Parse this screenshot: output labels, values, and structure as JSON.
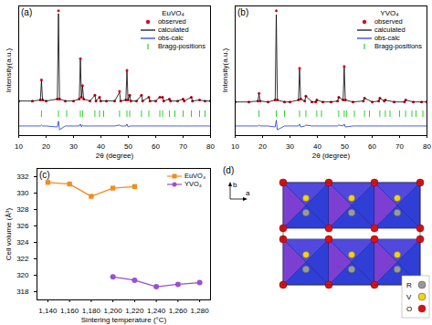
{
  "chart_data": [
    {
      "type": "line",
      "title": "(a)",
      "legend_title": "EuVO₄",
      "legend": "top-right",
      "tick_labels": "x",
      "xlabel": "2θ (degree)",
      "ylabel": "Intensity(a.u.)",
      "xlim": [
        10,
        80
      ],
      "xticks": [
        10,
        20,
        30,
        40,
        50,
        60,
        70,
        80
      ],
      "ylim": [
        -30,
        105
      ],
      "x": [
        10,
        15,
        17.9,
        18.3,
        18.7,
        20,
        24.1,
        24.5,
        24.9,
        27,
        30,
        32.1,
        32.5,
        32.9,
        33.3,
        33.7,
        36,
        37.8,
        38.2,
        39.5,
        39.9,
        42,
        45,
        46.8,
        47.2,
        49.1,
        49.5,
        49.9,
        50.5,
        50.9,
        53,
        54.8,
        55.2,
        57.5,
        57.9,
        60,
        61.5,
        62.5,
        62.9,
        65,
        65.4,
        68,
        70,
        70.4,
        73,
        73.4,
        76,
        78,
        80
      ],
      "series": [
        {
          "name": "observed",
          "type": "scatter",
          "marker": "circle",
          "color": "#e4001b",
          "values": [
            6,
            6,
            7,
            28,
            7,
            6,
            8,
            100,
            8,
            6,
            6,
            8,
            50,
            10,
            22,
            8,
            6,
            12,
            6,
            10,
            6,
            6,
            6,
            16,
            6,
            7,
            38,
            7,
            12,
            6,
            6,
            12,
            6,
            10,
            6,
            6,
            10,
            10,
            6,
            8,
            6,
            6,
            8,
            6,
            10,
            6,
            7,
            6,
            6
          ]
        },
        {
          "name": "calculated",
          "type": "line",
          "color": "#000000",
          "values": [
            6,
            6,
            7,
            27,
            7,
            6,
            8,
            97,
            8,
            6,
            6,
            8,
            49,
            10,
            21,
            8,
            6,
            12,
            6,
            10,
            6,
            6,
            6,
            15,
            6,
            7,
            37,
            7,
            12,
            6,
            6,
            12,
            6,
            10,
            6,
            6,
            10,
            10,
            6,
            8,
            6,
            6,
            8,
            6,
            10,
            6,
            7,
            6,
            6
          ]
        },
        {
          "name": "obs-calc",
          "type": "line",
          "color": "#1f35c8",
          "values": [
            -20,
            -20,
            -20,
            -19,
            -20,
            -20,
            -21,
            -15,
            -24,
            -20,
            -20,
            -20,
            -18,
            -21,
            -19,
            -20,
            -20,
            -20,
            -20,
            -20,
            -20,
            -20,
            -20,
            -19,
            -20,
            -20,
            -18,
            -21,
            -20,
            -20,
            -20,
            -20,
            -20,
            -20,
            -20,
            -20,
            -20,
            -20,
            -20,
            -20,
            -20,
            -20,
            -20,
            -20,
            -20,
            -20,
            -20,
            -20,
            -20
          ]
        },
        {
          "name": "Bragg-positions",
          "type": "ticks",
          "color": "#2bd02b",
          "x": [
            18.3,
            24.5,
            27.5,
            32.5,
            33.3,
            37.8,
            39.5,
            41,
            46.8,
            49.5,
            50.5,
            54.8,
            57.5,
            61.5,
            62.5,
            65,
            67,
            70,
            73,
            76,
            78
          ]
        }
      ]
    },
    {
      "type": "line",
      "title": "(b)",
      "legend_title": "YVO₄",
      "legend": "top-right",
      "tick_labels": "x",
      "xlabel": "2θ (degree)",
      "ylabel": "Intensity(a.u.)",
      "xlim": [
        10,
        80
      ],
      "xticks": [
        10,
        20,
        30,
        40,
        50,
        60,
        70,
        80
      ],
      "ylim": [
        -30,
        105
      ],
      "x": [
        10,
        15,
        18.3,
        18.7,
        19.1,
        22,
        24.6,
        25.0,
        25.4,
        28,
        30,
        33.1,
        33.5,
        33.9,
        35.4,
        35.8,
        38,
        39.4,
        39.8,
        42,
        45,
        47.4,
        47.8,
        49.4,
        49.8,
        50.2,
        53,
        56.8,
        57.2,
        60,
        62.4,
        62.8,
        64.4,
        64.8,
        68,
        71.8,
        72.2,
        75,
        78,
        80
      ],
      "series": [
        {
          "name": "observed",
          "type": "scatter",
          "marker": "circle",
          "color": "#e4001b",
          "values": [
            5,
            5,
            6,
            14,
            6,
            5,
            7,
            100,
            7,
            5,
            5,
            7,
            40,
            8,
            6,
            11,
            5,
            5,
            7,
            5,
            5,
            6,
            10,
            7,
            42,
            7,
            5,
            6,
            9,
            5,
            6,
            9,
            6,
            7,
            5,
            5,
            7,
            5,
            5,
            5
          ]
        },
        {
          "name": "calculated",
          "type": "line",
          "color": "#000000",
          "values": [
            5,
            5,
            6,
            13,
            6,
            5,
            7,
            96,
            7,
            5,
            5,
            7,
            39,
            8,
            6,
            11,
            5,
            5,
            7,
            5,
            5,
            6,
            10,
            7,
            41,
            7,
            5,
            6,
            9,
            5,
            6,
            9,
            6,
            7,
            5,
            5,
            7,
            5,
            5,
            5
          ]
        },
        {
          "name": "obs-calc",
          "type": "line",
          "color": "#1f35c8",
          "values": [
            -20,
            -20,
            -20,
            -19,
            -20,
            -20,
            -21,
            -14,
            -24,
            -20,
            -20,
            -20,
            -18,
            -21,
            -20,
            -19,
            -20,
            -20,
            -20,
            -20,
            -20,
            -20,
            -19,
            -20,
            -18,
            -21,
            -20,
            -20,
            -20,
            -20,
            -20,
            -20,
            -20,
            -20,
            -20,
            -20,
            -20,
            -20,
            -20,
            -20
          ]
        },
        {
          "name": "Bragg-positions",
          "type": "ticks",
          "color": "#2bd02b",
          "x": [
            18.7,
            25.0,
            28.0,
            33.5,
            35.8,
            39.8,
            41.5,
            47.8,
            49.8,
            50.6,
            53.5,
            57.2,
            59,
            62.8,
            64.8,
            66.5,
            70,
            72.2,
            74.5,
            76,
            78.5
          ]
        }
      ]
    },
    {
      "type": "line",
      "title": "(c)",
      "legend": "top-right",
      "xlabel": "Sintering temperature (°C)",
      "ylabel": "Cell volume (Å³)",
      "xlim": [
        1130,
        1290
      ],
      "xticks": [
        1140,
        1160,
        1180,
        1200,
        1220,
        1240,
        1260,
        1280
      ],
      "ylim": [
        317,
        333
      ],
      "yticks": [
        318,
        320,
        322,
        324,
        326,
        328,
        330,
        332
      ],
      "series": [
        {
          "name": "EuVO₄",
          "color": "#f28c1e",
          "marker": "square",
          "x": [
            1140,
            1160,
            1180,
            1200,
            1220
          ],
          "values": [
            331.3,
            331.1,
            329.6,
            330.6,
            330.8
          ]
        },
        {
          "name": "YVO₄",
          "color": "#9b4fd3",
          "marker": "circle",
          "x": [
            1200,
            1220,
            1240,
            1260,
            1280
          ],
          "values": [
            319.8,
            319.4,
            318.6,
            318.9,
            319.1
          ]
        }
      ]
    }
  ],
  "diagram": {
    "title": "(d)",
    "axes": [
      "b",
      "a"
    ],
    "legend": [
      {
        "label": "R",
        "color": "#9a9a9a"
      },
      {
        "label": "V",
        "color": "#f2d21a"
      },
      {
        "label": "O",
        "color": "#e01010"
      }
    ]
  }
}
